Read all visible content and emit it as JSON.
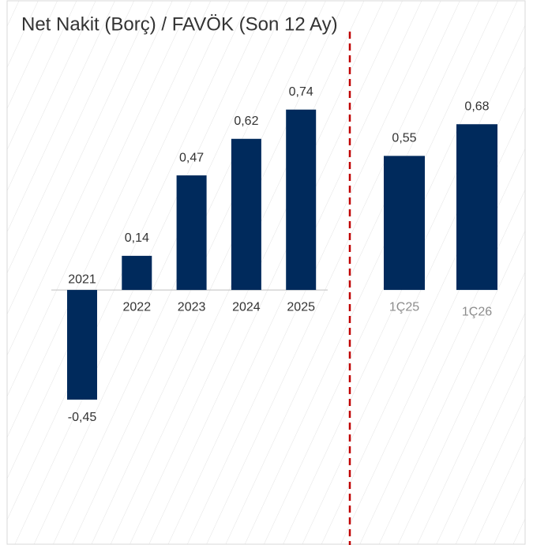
{
  "chart_data": {
    "type": "bar",
    "title": "Net Nakit (Borç) / FAVÖK (Son 12 Ay)",
    "categories": [
      "2021",
      "2022",
      "2023",
      "2024",
      "2025",
      "1Ç25",
      "1Ç26"
    ],
    "values": [
      -0.45,
      0.14,
      0.47,
      0.62,
      0.74,
      0.55,
      0.68
    ],
    "value_labels": [
      "-0,45",
      "0,14",
      "0,47",
      "0,62",
      "0,74",
      "0,55",
      "0,68"
    ],
    "color": "#002a5c",
    "category_colors": [
      "#333333",
      "#333333",
      "#333333",
      "#333333",
      "#333333",
      "#8c8c8c",
      "#8c8c8c"
    ],
    "ylim": [
      -1.04,
      1.06
    ]
  }
}
